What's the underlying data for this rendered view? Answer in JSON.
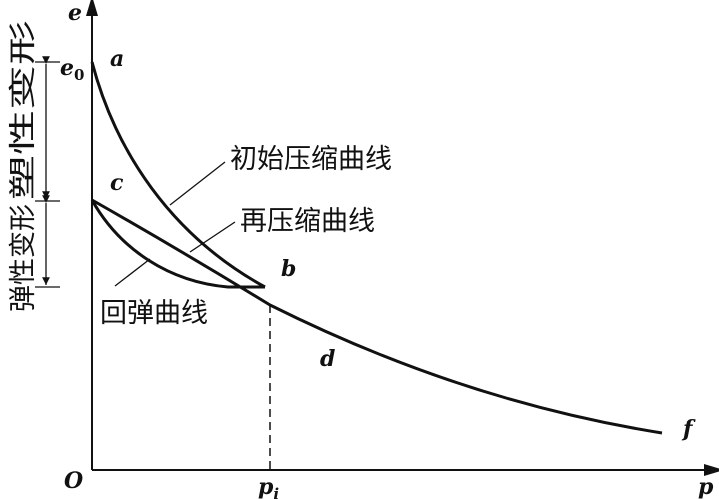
{
  "axes": {
    "y_label": "e",
    "x_label": "p",
    "origin": "O",
    "e0_label": "e",
    "e0_sub": "0",
    "pi_label": "p",
    "pi_sub": "i"
  },
  "points": {
    "a": "a",
    "b": "b",
    "c": "c",
    "d": "d",
    "f": "f"
  },
  "labels": {
    "initial_compression": "初始压缩曲线",
    "recompression": "再压缩曲线",
    "rebound": "回弹曲线",
    "plastic_deformation": "塑性变形",
    "elastic_deformation": "弹性变形"
  }
}
